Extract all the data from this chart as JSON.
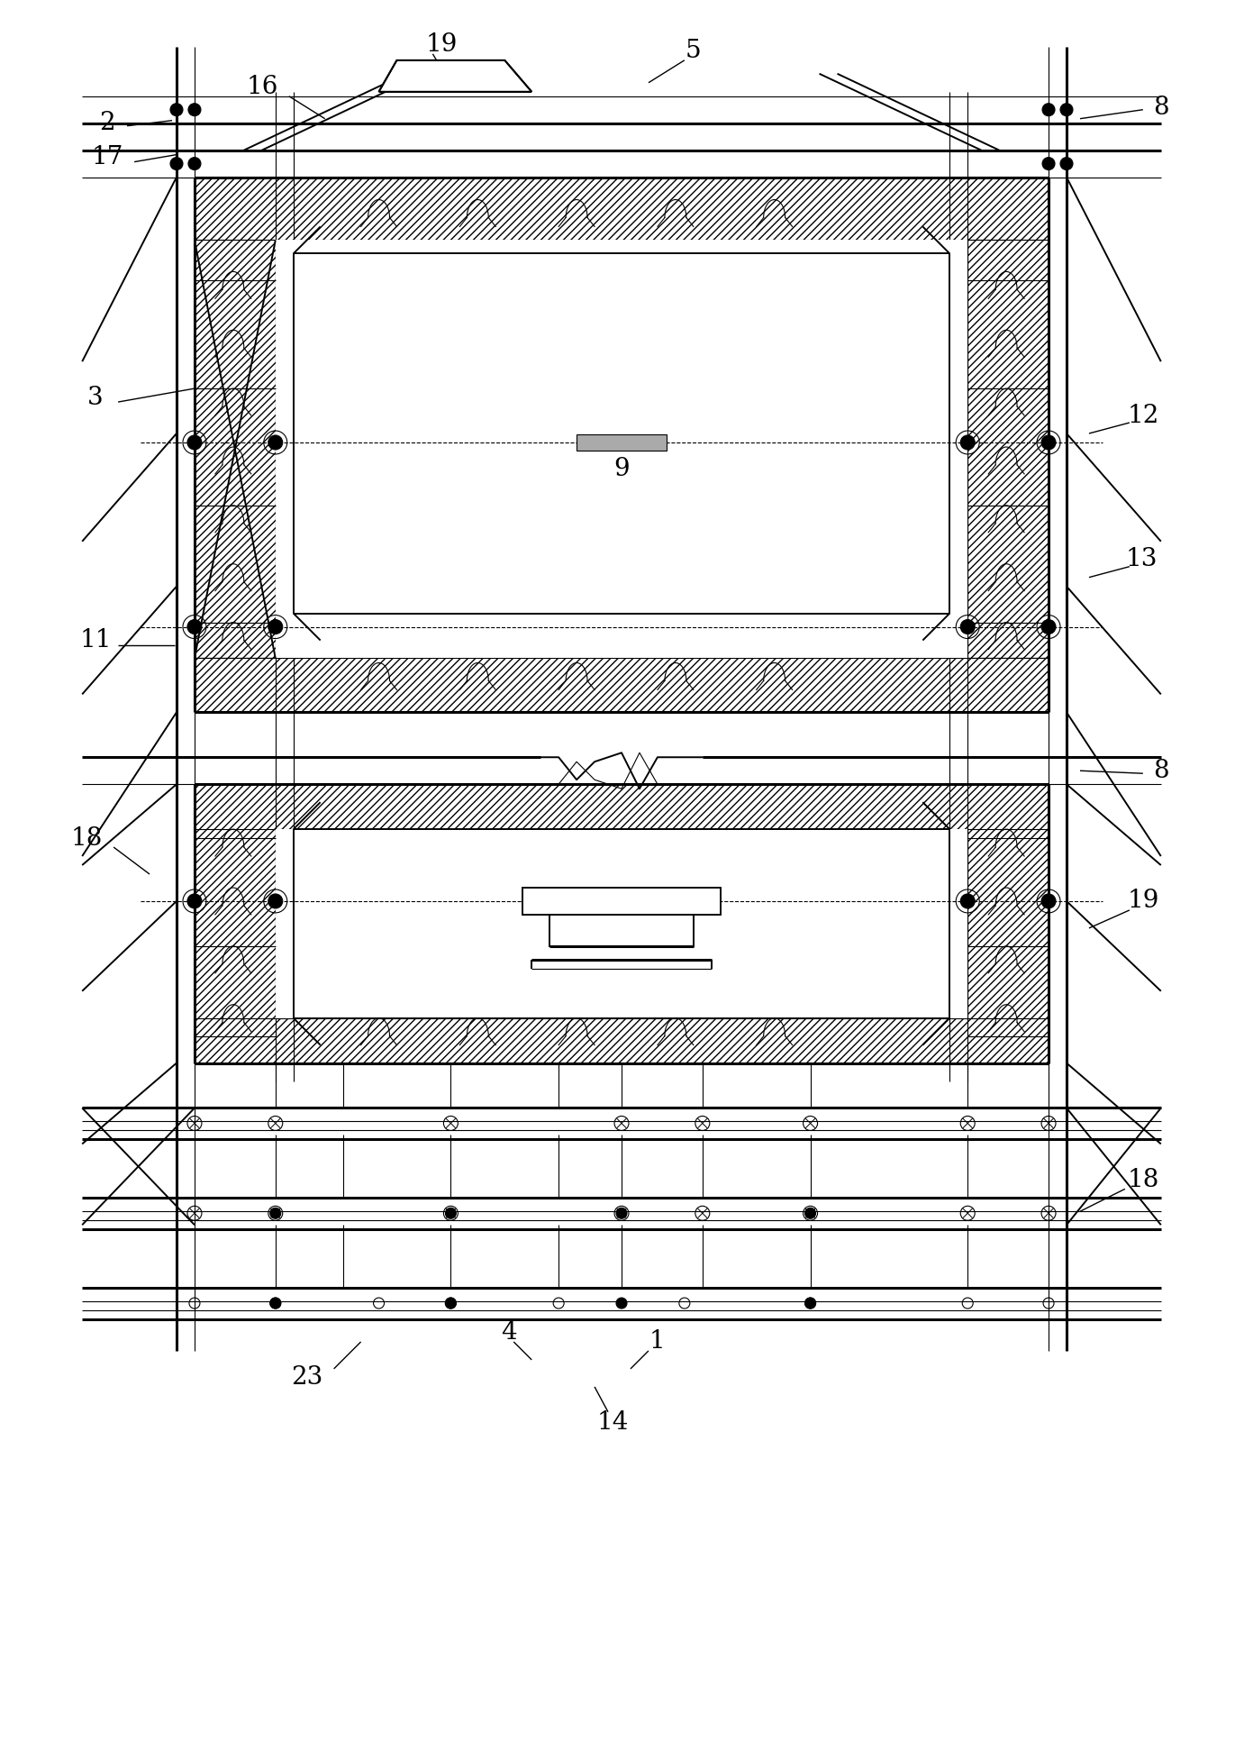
{
  "bg_color": "#ffffff",
  "fig_width": 13.81,
  "fig_height": 19.43,
  "lw_thick": 2.2,
  "lw_med": 1.4,
  "lw_thin": 0.8,
  "label_fontsize": 20
}
